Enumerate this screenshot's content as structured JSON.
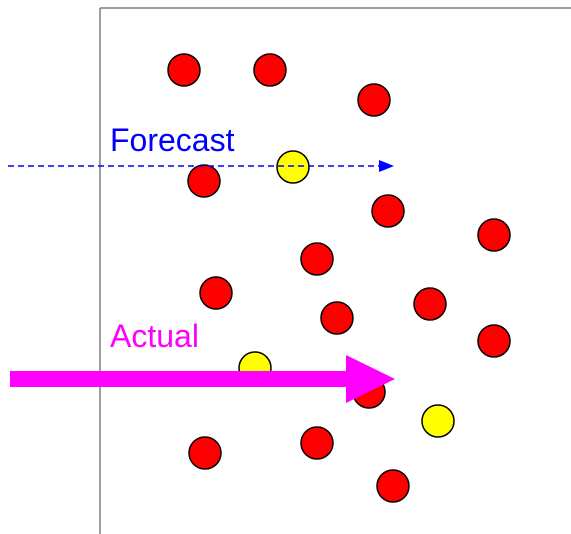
{
  "labels": {
    "forecast": "Forecast",
    "actual": "Actual"
  },
  "colors": {
    "frame": "#7f7f7f",
    "red_dot": "#ff0000",
    "yellow_dot": "#ffff00",
    "dot_stroke": "#000000",
    "forecast": "#0000ff",
    "actual": "#ff00ff"
  }
}
